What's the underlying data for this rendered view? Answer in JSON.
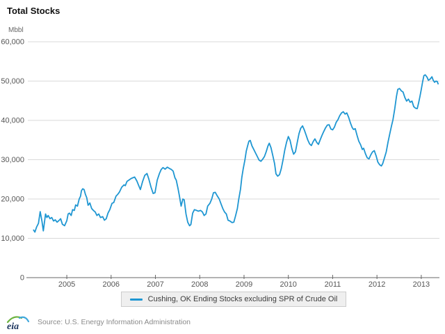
{
  "title": "Total Stocks",
  "y_axis_unit": "Mbbl",
  "legend": {
    "label": "Cushing, OK Ending Stocks excluding SPR of Crude Oil"
  },
  "footer": {
    "source": "Source: U.S. Energy Information Administration",
    "logo_text": "eia"
  },
  "colors": {
    "line": "#1e96d2",
    "grid": "#d9d9d9",
    "axis": "#b3b3b3",
    "tick": "#666666",
    "label": "#555555",
    "legend_bg": "#efefef",
    "legend_border": "#cccccc",
    "logo_navy": "#1c355e",
    "logo_green": "#6cb33f",
    "logo_blue": "#41a8dc"
  },
  "chart_data": {
    "type": "line",
    "title": "Total Stocks",
    "ylabel": "Mbbl",
    "xlabel": "",
    "grid": "horizontal",
    "legend_position": "bottom",
    "xlim": [
      2004.12,
      2013.41
    ],
    "ylim": [
      0,
      60000
    ],
    "x_ticks": [
      2005,
      2006,
      2007,
      2008,
      2009,
      2010,
      2011,
      2012,
      2013
    ],
    "y_ticks": [
      0,
      10000,
      20000,
      30000,
      40000,
      50000,
      60000
    ],
    "series": [
      {
        "name": "Cushing, OK Ending Stocks excluding SPR of Crude Oil",
        "x": [
          2004.25,
          2004.28,
          2004.32,
          2004.36,
          2004.4,
          2004.44,
          2004.47,
          2004.52,
          2004.55,
          2004.58,
          2004.62,
          2004.66,
          2004.7,
          2004.74,
          2004.78,
          2004.82,
          2004.86,
          2004.9,
          2004.95,
          2005.0,
          2005.03,
          2005.06,
          2005.1,
          2005.13,
          2005.17,
          2005.2,
          2005.24,
          2005.28,
          2005.31,
          2005.33,
          2005.36,
          2005.39,
          2005.42,
          2005.45,
          2005.48,
          2005.52,
          2005.56,
          2005.6,
          2005.64,
          2005.68,
          2005.72,
          2005.76,
          2005.81,
          2005.85,
          2005.89,
          2005.93,
          2005.97,
          2006.02,
          2006.06,
          2006.11,
          2006.15,
          2006.19,
          2006.24,
          2006.29,
          2006.32,
          2006.36,
          2006.4,
          2006.45,
          2006.49,
          2006.53,
          2006.58,
          2006.62,
          2006.66,
          2006.71,
          2006.76,
          2006.81,
          2006.85,
          2006.9,
          2006.95,
          2006.99,
          2007.04,
          2007.09,
          2007.13,
          2007.17,
          2007.22,
          2007.27,
          2007.31,
          2007.36,
          2007.4,
          2007.44,
          2007.47,
          2007.51,
          2007.54,
          2007.58,
          2007.62,
          2007.65,
          2007.69,
          2007.73,
          2007.77,
          2007.8,
          2007.84,
          2007.88,
          2007.93,
          2007.97,
          2008.02,
          2008.06,
          2008.1,
          2008.14,
          2008.18,
          2008.23,
          2008.27,
          2008.31,
          2008.35,
          2008.39,
          2008.44,
          2008.48,
          2008.52,
          2008.56,
          2008.6,
          2008.64,
          2008.68,
          2008.73,
          2008.77,
          2008.81,
          2008.85,
          2008.88,
          2008.92,
          2008.95,
          2008.98,
          2009.02,
          2009.05,
          2009.08,
          2009.11,
          2009.14,
          2009.18,
          2009.22,
          2009.26,
          2009.3,
          2009.34,
          2009.38,
          2009.42,
          2009.46,
          2009.5,
          2009.54,
          2009.57,
          2009.61,
          2009.65,
          2009.69,
          2009.72,
          2009.76,
          2009.8,
          2009.84,
          2009.88,
          2009.92,
          2009.96,
          2010.0,
          2010.04,
          2010.08,
          2010.12,
          2010.16,
          2010.2,
          2010.24,
          2010.28,
          2010.32,
          2010.36,
          2010.4,
          2010.44,
          2010.48,
          2010.52,
          2010.56,
          2010.6,
          2010.64,
          2010.68,
          2010.72,
          2010.76,
          2010.8,
          2010.84,
          2010.88,
          2010.92,
          2010.96,
          2011.0,
          2011.04,
          2011.08,
          2011.12,
          2011.16,
          2011.2,
          2011.24,
          2011.28,
          2011.32,
          2011.36,
          2011.4,
          2011.44,
          2011.47,
          2011.51,
          2011.55,
          2011.59,
          2011.63,
          2011.67,
          2011.7,
          2011.74,
          2011.78,
          2011.82,
          2011.86,
          2011.9,
          2011.94,
          2011.98,
          2012.02,
          2012.06,
          2012.1,
          2012.13,
          2012.17,
          2012.21,
          2012.25,
          2012.29,
          2012.33,
          2012.36,
          2012.4,
          2012.44,
          2012.47,
          2012.51,
          2012.55,
          2012.59,
          2012.63,
          2012.67,
          2012.71,
          2012.75,
          2012.79,
          2012.83,
          2012.87,
          2012.91,
          2012.94,
          2012.97,
          2013.0,
          2013.03,
          2013.06,
          2013.09,
          2013.13,
          2013.16,
          2013.2,
          2013.24,
          2013.27,
          2013.3,
          2013.33,
          2013.36,
          2013.38
        ],
        "values": [
          12100,
          11600,
          12900,
          13800,
          16800,
          14300,
          11900,
          16200,
          15300,
          15800,
          15000,
          15300,
          14400,
          14700,
          14100,
          14500,
          15000,
          13600,
          13200,
          14500,
          16200,
          16400,
          15800,
          17300,
          17100,
          18500,
          18200,
          20000,
          20700,
          22100,
          22600,
          22400,
          21200,
          20300,
          18400,
          19000,
          17600,
          17100,
          16700,
          15800,
          16200,
          15300,
          15500,
          14600,
          15000,
          16400,
          17300,
          18900,
          19100,
          20700,
          21200,
          21800,
          23000,
          23600,
          23400,
          24500,
          24800,
          25200,
          25400,
          25600,
          24600,
          23500,
          22400,
          24400,
          26000,
          26500,
          25100,
          23000,
          21400,
          21600,
          24800,
          26500,
          27500,
          28000,
          27600,
          28100,
          27800,
          27500,
          27100,
          25400,
          24800,
          22700,
          20900,
          18200,
          20000,
          19800,
          16200,
          14100,
          13200,
          13500,
          16400,
          17300,
          17100,
          16900,
          17100,
          16700,
          15800,
          16200,
          18200,
          18900,
          20000,
          21600,
          21700,
          20900,
          20000,
          18800,
          17600,
          16700,
          16200,
          14600,
          14400,
          14000,
          14100,
          15800,
          17600,
          19900,
          22500,
          25500,
          27600,
          29900,
          32200,
          33500,
          34700,
          34900,
          33500,
          32600,
          31700,
          30800,
          29900,
          29600,
          30100,
          30800,
          32000,
          33500,
          34200,
          33000,
          31000,
          29000,
          26400,
          25800,
          26200,
          27700,
          30000,
          32500,
          34500,
          35900,
          34900,
          32800,
          31400,
          32000,
          34300,
          36600,
          38000,
          38600,
          37600,
          36300,
          35000,
          34000,
          33600,
          34600,
          35300,
          34400,
          33900,
          35100,
          36200,
          37200,
          38100,
          38800,
          38900,
          37800,
          37600,
          38300,
          39500,
          40200,
          41200,
          41900,
          42200,
          41600,
          41900,
          40800,
          39400,
          38200,
          37700,
          37900,
          36200,
          34700,
          33800,
          32600,
          32900,
          31500,
          30500,
          30200,
          31200,
          32000,
          32300,
          31000,
          29400,
          28700,
          28400,
          29000,
          30500,
          32000,
          34500,
          36600,
          38700,
          40100,
          42800,
          46100,
          47900,
          48100,
          47500,
          47200,
          45800,
          44900,
          45400,
          44600,
          44900,
          43500,
          43100,
          43000,
          44400,
          46100,
          47900,
          49800,
          51400,
          51600,
          51000,
          50200,
          50500,
          51100,
          50200,
          49700,
          50000,
          49900,
          49300
        ]
      }
    ]
  }
}
